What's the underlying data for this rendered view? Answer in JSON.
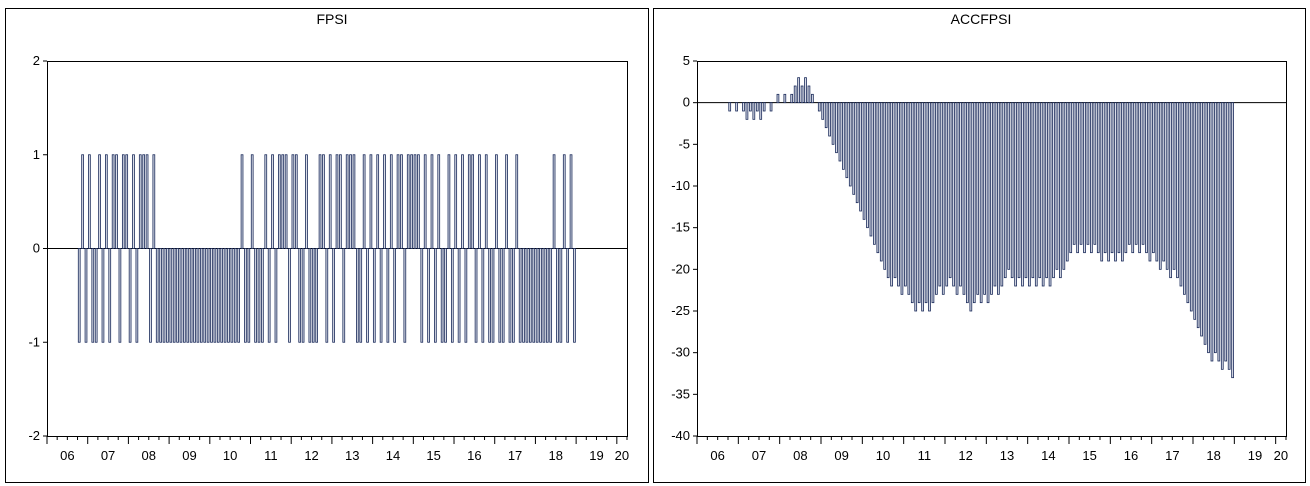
{
  "panels": [
    {
      "title": "FPSI"
    },
    {
      "title": "ACCFPSI"
    }
  ],
  "colors": {
    "bar_fill": "#d9dde8",
    "bar_stroke": "#1a2a5a",
    "zero_line": "#000000",
    "frame": "#000000"
  },
  "chart_data": [
    {
      "type": "bar",
      "title": "FPSI",
      "xlabel": "",
      "ylabel": "",
      "ylim": [
        -2,
        2
      ],
      "yticks": [
        2,
        1,
        0,
        -1,
        -2
      ],
      "frequency": "monthly",
      "xticks": [
        "06",
        "07",
        "08",
        "09",
        "10",
        "11",
        "12",
        "13",
        "14",
        "15",
        "16",
        "17",
        "18",
        "19",
        "20"
      ],
      "xrange": [
        "2006-01",
        "2020-03"
      ],
      "grid": false,
      "series": [
        {
          "start": "2006-10",
          "values": [
            -1,
            1,
            -1,
            1,
            -1,
            -1,
            1,
            -1,
            1,
            -1,
            1,
            1,
            -1,
            1,
            1,
            -1,
            1,
            -1,
            1,
            1,
            1,
            -1,
            1,
            -1,
            -1,
            -1,
            -1,
            -1,
            -1,
            -1,
            -1,
            -1,
            -1,
            -1,
            -1,
            -1,
            -1,
            -1,
            -1,
            -1,
            -1,
            -1,
            -1,
            -1,
            -1,
            -1,
            -1,
            -1,
            1,
            -1,
            -1,
            1,
            -1,
            -1,
            -1,
            1,
            -1,
            1,
            -1,
            1,
            1,
            1,
            -1,
            1,
            1,
            -1,
            -1,
            1,
            -1,
            -1,
            -1,
            1,
            1,
            -1,
            1,
            -1,
            1,
            1,
            -1,
            1,
            1,
            1,
            -1,
            -1,
            1,
            -1,
            1,
            -1,
            1,
            -1,
            1,
            -1,
            1,
            -1,
            1,
            1,
            -1,
            1,
            1,
            1,
            1,
            -1,
            1,
            -1,
            1,
            -1,
            1,
            -1,
            -1,
            1,
            -1,
            1,
            -1,
            1,
            -1,
            1,
            1,
            -1,
            1,
            -1,
            1,
            -1,
            -1,
            1,
            -1,
            -1,
            1,
            -1,
            -1,
            1,
            -1,
            -1,
            -1,
            -1,
            -1,
            -1,
            -1,
            -1,
            -1,
            -1,
            1,
            -1,
            -1,
            1,
            -1,
            1,
            -1
          ]
        }
      ]
    },
    {
      "type": "bar",
      "title": "ACCFPSI",
      "xlabel": "",
      "ylabel": "",
      "ylim": [
        -40,
        5
      ],
      "yticks": [
        5,
        0,
        -5,
        -10,
        -15,
        -20,
        -25,
        -30,
        -35,
        -40
      ],
      "frequency": "monthly",
      "xticks": [
        "06",
        "07",
        "08",
        "09",
        "10",
        "11",
        "12",
        "13",
        "14",
        "15",
        "16",
        "17",
        "18",
        "19",
        "20"
      ],
      "xrange": [
        "2006-01",
        "2020-03"
      ],
      "grid": false,
      "series": [
        {
          "start": "2006-10",
          "values": [
            -1,
            0,
            -1,
            0,
            -1,
            -2,
            -1,
            -2,
            -1,
            -2,
            -1,
            0,
            -1,
            0,
            1,
            0,
            1,
            0,
            1,
            2,
            3,
            2,
            3,
            2,
            1,
            0,
            -1,
            -2,
            -3,
            -4,
            -5,
            -6,
            -7,
            -8,
            -9,
            -10,
            -11,
            -12,
            -13,
            -14,
            -15,
            -16,
            -17,
            -18,
            -19,
            -20,
            -21,
            -22,
            -21,
            -22,
            -23,
            -22,
            -23,
            -24,
            -25,
            -24,
            -25,
            -24,
            -25,
            -24,
            -23,
            -22,
            -23,
            -22,
            -21,
            -22,
            -23,
            -22,
            -23,
            -24,
            -25,
            -24,
            -23,
            -24,
            -23,
            -24,
            -23,
            -22,
            -23,
            -22,
            -21,
            -20,
            -21,
            -22,
            -21,
            -22,
            -21,
            -22,
            -21,
            -22,
            -21,
            -22,
            -21,
            -22,
            -21,
            -20,
            -21,
            -20,
            -19,
            -18,
            -17,
            -18,
            -17,
            -18,
            -17,
            -18,
            -17,
            -18,
            -19,
            -18,
            -19,
            -18,
            -19,
            -18,
            -19,
            -18,
            -17,
            -18,
            -17,
            -18,
            -17,
            -18,
            -19,
            -18,
            -19,
            -20,
            -19,
            -20,
            -21,
            -20,
            -21,
            -22,
            -23,
            -24,
            -25,
            -26,
            -27,
            -28,
            -29,
            -30,
            -31,
            -30,
            -31,
            -32,
            -31,
            -32,
            -33
          ]
        }
      ]
    }
  ]
}
